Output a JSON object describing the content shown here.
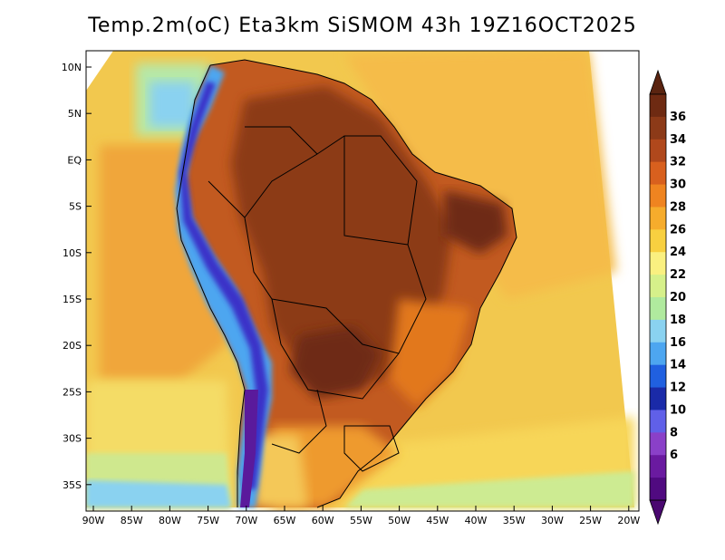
{
  "title": "Temp.2m(oC) Eta3km SiSMOM 43h 19Z16OCT2025",
  "map": {
    "lat_ticks": [
      "10N",
      "5N",
      "EQ",
      "5S",
      "10S",
      "15S",
      "20S",
      "25S",
      "30S",
      "35S"
    ],
    "lon_ticks": [
      "90W",
      "85W",
      "80W",
      "75W",
      "70W",
      "65W",
      "60W",
      "55W",
      "50W",
      "45W",
      "40W",
      "35W",
      "30W",
      "25W",
      "20W"
    ]
  },
  "colorbar": {
    "labels": [
      "36",
      "34",
      "32",
      "30",
      "28",
      "26",
      "24",
      "22",
      "20",
      "18",
      "16",
      "14",
      "12",
      "10",
      "8",
      "6"
    ],
    "colors": [
      "#6e2a12",
      "#8c3a18",
      "#b0481c",
      "#d8601e",
      "#ef8420",
      "#f6ac2c",
      "#f8d040",
      "#faf080",
      "#d6f08a",
      "#b0ea9e",
      "#8ad2f0",
      "#4da6f0",
      "#2060e0",
      "#1a2aa8",
      "#6060e8",
      "#8a40c8",
      "#6a1aa0",
      "#500a80"
    ],
    "top_color": "#5a2410",
    "bottom_color": "#4a0870"
  }
}
